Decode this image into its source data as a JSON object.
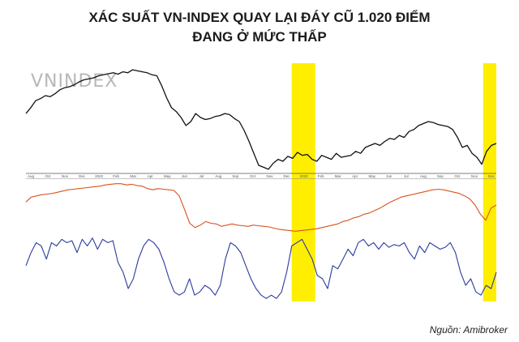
{
  "title": {
    "line1": "XÁC SUẤT VN-INDEX QUAY LẠI ĐÁY CŨ 1.020 ĐIỂM",
    "line2": "ĐANG Ở MỨC THẤP"
  },
  "source": "Nguồn: Amibroker",
  "chart_data": [
    {
      "type": "line",
      "name": "price",
      "watermark": "VNINDEX",
      "series": [
        {
          "color": "#111111",
          "values": [
            1300,
            1330,
            1365,
            1375,
            1390,
            1385,
            1400,
            1420,
            1430,
            1435,
            1445,
            1460,
            1470,
            1475,
            1480,
            1490,
            1495,
            1500,
            1505,
            1498,
            1510,
            1505,
            1520,
            1515,
            1510,
            1505,
            1495,
            1490,
            1440,
            1380,
            1330,
            1310,
            1280,
            1240,
            1260,
            1300,
            1280,
            1270,
            1275,
            1285,
            1290,
            1300,
            1295,
            1275,
            1260,
            1215,
            1160,
            1100,
            1040,
            1030,
            1020,
            1050,
            1070,
            1060,
            1085,
            1075,
            1105,
            1090,
            1095,
            1070,
            1060,
            1090,
            1080,
            1070,
            1100,
            1080,
            1085,
            1090,
            1110,
            1100,
            1130,
            1140,
            1150,
            1140,
            1160,
            1175,
            1170,
            1190,
            1180,
            1210,
            1220,
            1240,
            1250,
            1260,
            1255,
            1245,
            1240,
            1235,
            1220,
            1180,
            1130,
            1140,
            1100,
            1080,
            1045,
            1110,
            1140,
            1150
          ]
        }
      ],
      "x_tick_labels": [
        "Aug",
        "Oct",
        "Nov",
        "Dec",
        "2022",
        "Feb",
        "Mar",
        "Apr",
        "May",
        "Jun",
        "Jul",
        "Aug",
        "Sep",
        "Oct",
        "Nov",
        "Dec",
        "2023",
        "Feb",
        "Mar",
        "Apr",
        "May",
        "Jun",
        "Jul",
        "Aug",
        "Sep",
        "Oct",
        "Nov",
        "Dec"
      ],
      "highlights": [
        [
          0.565,
          0.615
        ],
        [
          0.972,
          1.0
        ]
      ]
    },
    {
      "type": "line",
      "name": "indicator-1",
      "series": [
        {
          "color": "#d9531e",
          "values": [
            0.5,
            0.58,
            0.6,
            0.62,
            0.63,
            0.64,
            0.66,
            0.68,
            0.7,
            0.71,
            0.72,
            0.73,
            0.74,
            0.75,
            0.76,
            0.78,
            0.79,
            0.8,
            0.8,
            0.78,
            0.79,
            0.77,
            0.76,
            0.72,
            0.7,
            0.72,
            0.71,
            0.7,
            0.69,
            0.6,
            0.38,
            0.15,
            0.08,
            0.12,
            0.18,
            0.15,
            0.14,
            0.1,
            0.12,
            0.14,
            0.12,
            0.11,
            0.1,
            0.12,
            0.11,
            0.1,
            0.09,
            0.07,
            0.05,
            0.04,
            0.03,
            0.02,
            0.03,
            0.04,
            0.05,
            0.06,
            0.08,
            0.1,
            0.12,
            0.14,
            0.18,
            0.2,
            0.24,
            0.26,
            0.3,
            0.32,
            0.36,
            0.4,
            0.45,
            0.5,
            0.54,
            0.58,
            0.6,
            0.62,
            0.64,
            0.66,
            0.68,
            0.7,
            0.71,
            0.7,
            0.68,
            0.66,
            0.64,
            0.6,
            0.55,
            0.45,
            0.3,
            0.2,
            0.4,
            0.45
          ]
        }
      ],
      "highlights": [
        [
          0.565,
          0.615
        ],
        [
          0.972,
          1.0
        ]
      ]
    },
    {
      "type": "line",
      "name": "indicator-2",
      "series": [
        {
          "color": "#2b3b9e",
          "values": [
            0.5,
            0.7,
            0.85,
            0.8,
            0.6,
            0.85,
            0.8,
            0.9,
            0.85,
            0.88,
            0.7,
            0.9,
            0.8,
            0.92,
            0.75,
            0.9,
            0.85,
            0.88,
            0.55,
            0.4,
            0.15,
            0.3,
            0.6,
            0.8,
            0.9,
            0.85,
            0.75,
            0.55,
            0.3,
            0.1,
            0.05,
            0.1,
            0.3,
            0.05,
            0.1,
            0.2,
            0.15,
            0.05,
            0.2,
            0.6,
            0.85,
            0.8,
            0.7,
            0.5,
            0.3,
            0.15,
            0.05,
            0.0,
            0.05,
            0.0,
            0.1,
            0.4,
            0.8,
            0.85,
            0.9,
            0.75,
            0.6,
            0.35,
            0.3,
            0.15,
            0.5,
            0.45,
            0.6,
            0.75,
            0.65,
            0.85,
            0.9,
            0.8,
            0.85,
            0.75,
            0.85,
            0.78,
            0.82,
            0.8,
            0.85,
            0.7,
            0.6,
            0.8,
            0.7,
            0.85,
            0.8,
            0.75,
            0.78,
            0.85,
            0.7,
            0.4,
            0.2,
            0.3,
            0.1,
            0.05,
            0.2,
            0.15,
            0.4
          ]
        }
      ],
      "highlights": [
        [
          0.565,
          0.615
        ],
        [
          0.972,
          1.0
        ]
      ]
    }
  ]
}
